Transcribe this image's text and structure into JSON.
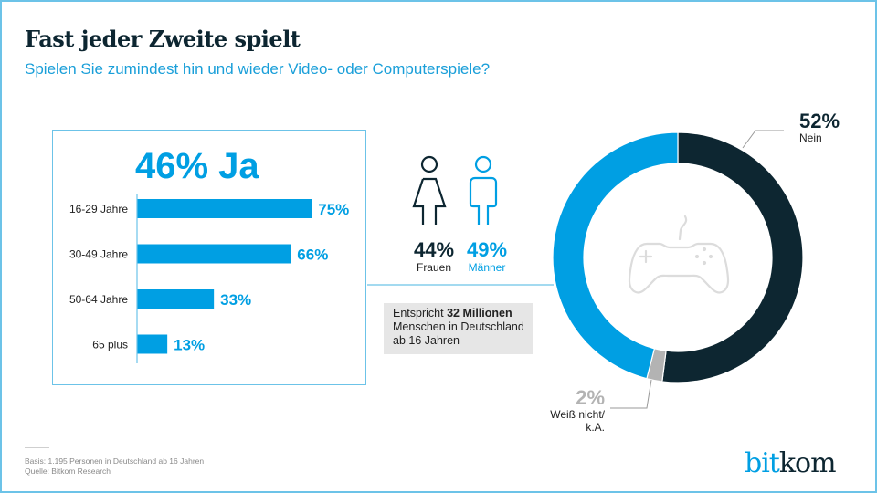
{
  "header": {
    "title": "Fast jeder Zweite spielt",
    "subtitle": "Spielen Sie zumindest hin und wieder Video- oder Computerspiele?"
  },
  "colors": {
    "accent": "#009fe3",
    "dark": "#0d2631",
    "gray": "#b3b3b3",
    "frame": "#6cc3e8"
  },
  "chart_data": [
    {
      "type": "bar",
      "orientation": "horizontal",
      "title": "46% Ja",
      "categories": [
        "16-29 Jahre",
        "30-49 Jahre",
        "50-64 Jahre",
        "65 plus"
      ],
      "values": [
        75,
        66,
        33,
        13
      ],
      "value_labels": [
        "75%",
        "66%",
        "33%",
        "13%"
      ],
      "xlim": [
        0,
        100
      ],
      "grid": false
    },
    {
      "type": "pie",
      "variant": "donut",
      "slices": [
        {
          "label": "Nein",
          "value": 52,
          "display": "52%",
          "color": "#0d2631"
        },
        {
          "label": "Weiß nicht/ k.A.",
          "value": 2,
          "display": "2%",
          "color": "#b3b3b3"
        },
        {
          "label": "Ja",
          "value": 46,
          "display": "46%",
          "color": "#009fe3"
        }
      ],
      "center_icon": "gamepad-icon"
    }
  ],
  "gender": {
    "female": {
      "pct": "44%",
      "label": "Frauen"
    },
    "male": {
      "pct": "49%",
      "label": "Männer"
    }
  },
  "note": {
    "prefix": "Entspricht ",
    "bold": "32 Millionen",
    "rest_line2": "Menschen in Deutschland",
    "rest_line3": "ab 16 Jahren"
  },
  "donut_labels": {
    "nein": {
      "pct": "52%",
      "label": "Nein"
    },
    "weiss": {
      "pct": "2%",
      "label_line1": "Weiß nicht/",
      "label_line2": "k.A."
    }
  },
  "footer": {
    "basis": "Basis: 1.195 Personen in Deutschland ab 16 Jahren",
    "quelle": "Quelle: Bitkom Research",
    "logo_part1": "bit",
    "logo_part2": "kom"
  }
}
